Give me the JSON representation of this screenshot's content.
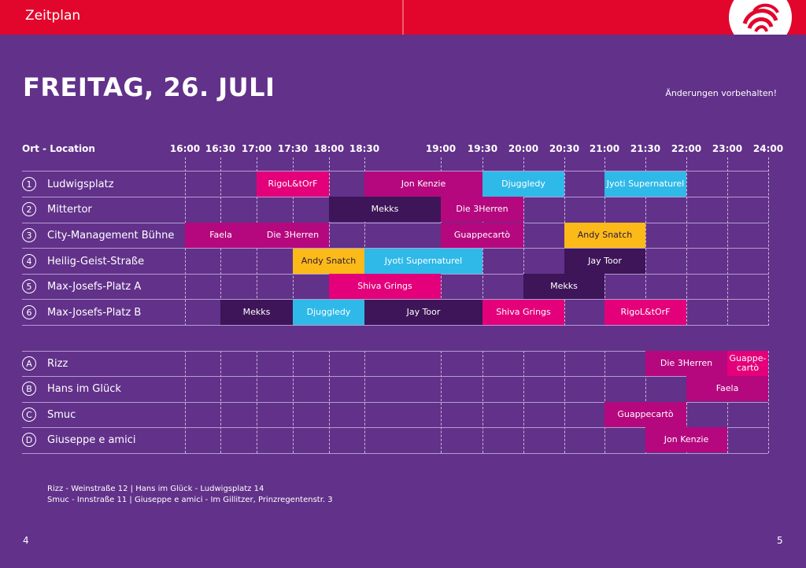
{
  "header": {
    "section_title": "Zeitplan"
  },
  "title": "FREITAG, 26. JULI",
  "notice": "Änderungen vorbehalten!",
  "column_header": "Ort - Location",
  "times": [
    "16:00",
    "16:30",
    "17:00",
    "17:30",
    "18:00",
    "18:30",
    "19:00",
    "19:30",
    "20:00",
    "20:30",
    "21:00",
    "21:30",
    "22:00",
    "23:00",
    "24:00"
  ],
  "locations": [
    {
      "marker": "1",
      "name": "Ludwigsplatz"
    },
    {
      "marker": "2",
      "name": "Mittertor"
    },
    {
      "marker": "3",
      "name": "City-Management Bühne"
    },
    {
      "marker": "4",
      "name": "Heilig-Geist-Straße"
    },
    {
      "marker": "5",
      "name": "Max-Josefs-Platz A"
    },
    {
      "marker": "6",
      "name": "Max-Josefs-Platz B"
    },
    {
      "marker": "A",
      "name": "Rizz"
    },
    {
      "marker": "B",
      "name": "Hans im Glück"
    },
    {
      "marker": "C",
      "name": "Smuc"
    },
    {
      "marker": "D",
      "name": "Giuseppe e amici"
    }
  ],
  "events": [
    {
      "row": 0,
      "start": "17:00",
      "end": "18:00",
      "name": "RigoL&tOrF",
      "color": "magenta"
    },
    {
      "row": 0,
      "start": "18:30",
      "end": "19:30",
      "name": "Jon Kenzie",
      "color": "plum"
    },
    {
      "row": 0,
      "start": "19:30",
      "end": "20:30",
      "name": "Djuggledy",
      "color": "blue"
    },
    {
      "row": 0,
      "start": "21:00",
      "end": "22:00",
      "name": "Jyoti Supernaturel",
      "color": "blue"
    },
    {
      "row": 1,
      "start": "18:00",
      "end": "19:00",
      "name": "Mekks",
      "color": "dark"
    },
    {
      "row": 1,
      "start": "19:00",
      "end": "20:00",
      "name": "Die 3Herren",
      "color": "plum"
    },
    {
      "row": 2,
      "start": "16:00",
      "end": "17:00",
      "name": "Faela",
      "color": "plum"
    },
    {
      "row": 2,
      "start": "17:00",
      "end": "18:00",
      "name": "Die 3Herren",
      "color": "plum"
    },
    {
      "row": 2,
      "start": "19:00",
      "end": "20:00",
      "name": "Guappecartò",
      "color": "plum"
    },
    {
      "row": 2,
      "start": "20:30",
      "end": "21:30",
      "name": "Andy Snatch",
      "color": "yellow"
    },
    {
      "row": 3,
      "start": "17:30",
      "end": "18:30",
      "name": "Andy Snatch",
      "color": "yellow"
    },
    {
      "row": 3,
      "start": "18:30",
      "end": "19:30",
      "name": "Jyoti Supernaturel",
      "color": "blue"
    },
    {
      "row": 3,
      "start": "20:30",
      "end": "21:30",
      "name": "Jay Toor",
      "color": "dark"
    },
    {
      "row": 4,
      "start": "18:00",
      "end": "19:00",
      "name": "Shiva Grings",
      "color": "magenta"
    },
    {
      "row": 4,
      "start": "20:00",
      "end": "21:00",
      "name": "Mekks",
      "color": "dark"
    },
    {
      "row": 5,
      "start": "16:30",
      "end": "17:30",
      "name": "Mekks",
      "color": "dark"
    },
    {
      "row": 5,
      "start": "17:30",
      "end": "18:30",
      "name": "Djuggledy",
      "color": "blue"
    },
    {
      "row": 5,
      "start": "18:30",
      "end": "19:30",
      "name": "Jay Toor",
      "color": "dark"
    },
    {
      "row": 5,
      "start": "19:30",
      "end": "20:30",
      "name": "Shiva Grings",
      "color": "magenta"
    },
    {
      "row": 5,
      "start": "21:00",
      "end": "22:00",
      "name": "RigoL&tOrF",
      "color": "magenta"
    },
    {
      "row": 6,
      "start": "21:30",
      "end": "23:00",
      "name": "Die 3Herren",
      "color": "plum"
    },
    {
      "row": 6,
      "start": "23:00",
      "end": "24:00",
      "name": "Guappe-cartò",
      "color": "magenta"
    },
    {
      "row": 7,
      "start": "22:00",
      "end": "24:00",
      "name": "Faela",
      "color": "plum"
    },
    {
      "row": 8,
      "start": "21:00",
      "end": "22:00",
      "name": "Guappecartò",
      "color": "plum"
    },
    {
      "row": 9,
      "start": "21:30",
      "end": "23:00",
      "name": "Jon Kenzie",
      "color": "plum"
    }
  ],
  "footer": {
    "line1": "Rizz - Weinstraße 12  |  Hans im Glück - Ludwigsplatz 14",
    "line2": "Smuc - Innstraße 11  |  Giuseppe e amici - Im Gillitzer, Prinzregentenstr. 3"
  },
  "page_left": "4",
  "page_right": "5",
  "colors": {
    "magenta": "#e3007a",
    "plum": "#b5087e",
    "dark": "#3d1558",
    "blue": "#2fb9e8",
    "yellow": "#fbba17",
    "red": "#e2062c",
    "purple": "#62318a"
  }
}
